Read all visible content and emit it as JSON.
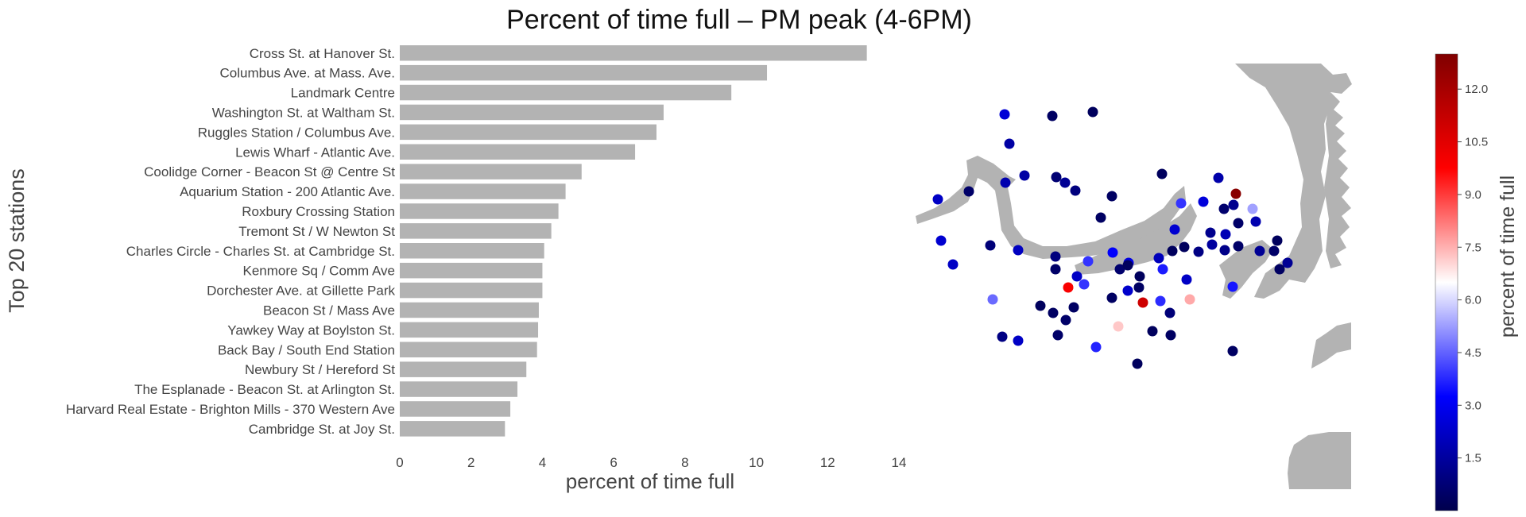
{
  "chart_data": [
    {
      "type": "bar",
      "orientation": "horizontal",
      "title": "Percent of time full – PM peak (4-6PM)",
      "xlabel": "percent of time full",
      "ylabel": "Top 20 stations",
      "xlim": [
        0,
        14
      ],
      "xticks": [
        0,
        2,
        4,
        6,
        8,
        10,
        12,
        14
      ],
      "grid": false,
      "categories": [
        "Cross St. at Hanover St.",
        "Columbus Ave. at Mass. Ave.",
        "Landmark Centre",
        "Washington St. at Waltham St.",
        "Ruggles Station / Columbus Ave.",
        "Lewis Wharf - Atlantic Ave.",
        "Coolidge Corner - Beacon St @ Centre St",
        "Aquarium Station - 200 Atlantic Ave.",
        "Roxbury Crossing Station",
        "Tremont St / W Newton St",
        "Charles Circle - Charles St. at Cambridge St.",
        "Kenmore Sq / Comm Ave",
        "Dorchester Ave. at Gillette Park",
        "Beacon St / Mass Ave",
        "Yawkey Way at Boylston St.",
        "Back Bay / South End Station",
        "Newbury St / Hereford St",
        "The Esplanade - Beacon St. at Arlington St.",
        "Harvard Real Estate - Brighton Mills - 370 Western Ave",
        "Cambridge St. at Joy St."
      ],
      "values": [
        13.1,
        10.3,
        9.3,
        7.4,
        7.2,
        6.6,
        5.1,
        4.65,
        4.45,
        4.25,
        4.05,
        4.0,
        4.0,
        3.9,
        3.88,
        3.85,
        3.55,
        3.3,
        3.1,
        2.95
      ],
      "bar_color": "#b3b3b3"
    },
    {
      "type": "scatter",
      "description_type": "map",
      "colorbar_label": "percent of time full",
      "colorbar_range": [
        0,
        13
      ],
      "colorbar_ticks": [
        1.5,
        3.0,
        4.5,
        6.0,
        7.5,
        9.0,
        10.5,
        12.0
      ],
      "colormap": "seismic",
      "points": [
        {
          "x": 112,
          "y": 68,
          "v": 2.5
        },
        {
          "x": 172,
          "y": 70,
          "v": 0.4
        },
        {
          "x": 223,
          "y": 65,
          "v": 0.3
        },
        {
          "x": 118,
          "y": 105,
          "v": 1.6
        },
        {
          "x": 28,
          "y": 175,
          "v": 2.2
        },
        {
          "x": 67,
          "y": 165,
          "v": 0.5
        },
        {
          "x": 113,
          "y": 154,
          "v": 1.8
        },
        {
          "x": 137,
          "y": 145,
          "v": 1.6
        },
        {
          "x": 177,
          "y": 147,
          "v": 0.7
        },
        {
          "x": 188,
          "y": 154,
          "v": 1.3
        },
        {
          "x": 201,
          "y": 164,
          "v": 0.9
        },
        {
          "x": 247,
          "y": 171,
          "v": 0.4
        },
        {
          "x": 310,
          "y": 143,
          "v": 0.3
        },
        {
          "x": 381,
          "y": 148,
          "v": 1.7
        },
        {
          "x": 403,
          "y": 168,
          "v": 12.8
        },
        {
          "x": 334,
          "y": 180,
          "v": 3.9
        },
        {
          "x": 362,
          "y": 178,
          "v": 2.6
        },
        {
          "x": 388,
          "y": 187,
          "v": 0.6
        },
        {
          "x": 400,
          "y": 182,
          "v": 1.2
        },
        {
          "x": 424,
          "y": 187,
          "v": 5.3
        },
        {
          "x": 233,
          "y": 198,
          "v": 0.4
        },
        {
          "x": 326,
          "y": 213,
          "v": 2.4
        },
        {
          "x": 406,
          "y": 205,
          "v": 0.5
        },
        {
          "x": 428,
          "y": 203,
          "v": 1.8
        },
        {
          "x": 371,
          "y": 217,
          "v": 1.2
        },
        {
          "x": 390,
          "y": 219,
          "v": 1.9
        },
        {
          "x": 32,
          "y": 227,
          "v": 2.4
        },
        {
          "x": 94,
          "y": 233,
          "v": 0.8
        },
        {
          "x": 129,
          "y": 239,
          "v": 2.1
        },
        {
          "x": 176,
          "y": 247,
          "v": 0.9
        },
        {
          "x": 217,
          "y": 253,
          "v": 3.9
        },
        {
          "x": 248,
          "y": 242,
          "v": 3.2
        },
        {
          "x": 268,
          "y": 255,
          "v": 2.7
        },
        {
          "x": 306,
          "y": 249,
          "v": 2.0
        },
        {
          "x": 323,
          "y": 240,
          "v": 0.3
        },
        {
          "x": 338,
          "y": 235,
          "v": 0.3
        },
        {
          "x": 356,
          "y": 241,
          "v": 1.0
        },
        {
          "x": 373,
          "y": 232,
          "v": 1.5
        },
        {
          "x": 389,
          "y": 239,
          "v": 1.1
        },
        {
          "x": 406,
          "y": 234,
          "v": 0.5
        },
        {
          "x": 433,
          "y": 240,
          "v": 1.3
        },
        {
          "x": 451,
          "y": 240,
          "v": 0.5
        },
        {
          "x": 455,
          "y": 227,
          "v": 0.3
        },
        {
          "x": 468,
          "y": 255,
          "v": 1.3
        },
        {
          "x": 458,
          "y": 263,
          "v": 0.4
        },
        {
          "x": 47,
          "y": 257,
          "v": 2.2
        },
        {
          "x": 176,
          "y": 263,
          "v": 0.5
        },
        {
          "x": 203,
          "y": 272,
          "v": 2.2
        },
        {
          "x": 212,
          "y": 282,
          "v": 3.9
        },
        {
          "x": 257,
          "y": 263,
          "v": 0.6
        },
        {
          "x": 267,
          "y": 258,
          "v": 0.3
        },
        {
          "x": 282,
          "y": 272,
          "v": 0.3
        },
        {
          "x": 311,
          "y": 263,
          "v": 3.6
        },
        {
          "x": 281,
          "y": 286,
          "v": 0.4
        },
        {
          "x": 267,
          "y": 290,
          "v": 2.3
        },
        {
          "x": 341,
          "y": 276,
          "v": 2.2
        },
        {
          "x": 399,
          "y": 285,
          "v": 3.5
        },
        {
          "x": 192,
          "y": 286,
          "v": 9.9
        },
        {
          "x": 97,
          "y": 301,
          "v": 4.6
        },
        {
          "x": 157,
          "y": 309,
          "v": 0.3
        },
        {
          "x": 173,
          "y": 318,
          "v": 0.4
        },
        {
          "x": 199,
          "y": 311,
          "v": 0.4
        },
        {
          "x": 189,
          "y": 327,
          "v": 0.5
        },
        {
          "x": 247,
          "y": 299,
          "v": 0.4
        },
        {
          "x": 286,
          "y": 305,
          "v": 11.0
        },
        {
          "x": 308,
          "y": 303,
          "v": 3.8
        },
        {
          "x": 320,
          "y": 318,
          "v": 0.8
        },
        {
          "x": 345,
          "y": 301,
          "v": 7.6
        },
        {
          "x": 255,
          "y": 335,
          "v": 7.2
        },
        {
          "x": 298,
          "y": 341,
          "v": 0.3
        },
        {
          "x": 321,
          "y": 346,
          "v": 0.4
        },
        {
          "x": 109,
          "y": 348,
          "v": 1.0
        },
        {
          "x": 129,
          "y": 353,
          "v": 2.2
        },
        {
          "x": 179,
          "y": 346,
          "v": 0.5
        },
        {
          "x": 227,
          "y": 361,
          "v": 3.7
        },
        {
          "x": 279,
          "y": 382,
          "v": 0.3
        },
        {
          "x": 399,
          "y": 366,
          "v": 0.4
        }
      ]
    }
  ]
}
